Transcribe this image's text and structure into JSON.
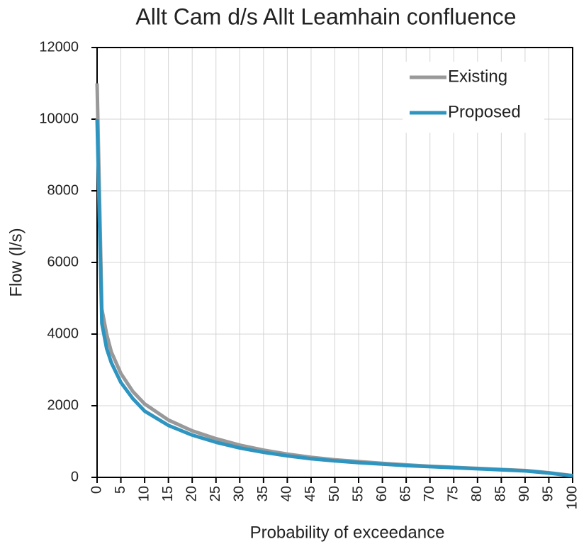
{
  "chart_data": {
    "type": "line",
    "title": "Allt Cam d/s Allt Leamhain confluence",
    "x_label": "Probability of exceedance",
    "y_label": "Flow (l/s)",
    "x": [
      0,
      1,
      2,
      3,
      5,
      7.5,
      10,
      15,
      20,
      25,
      30,
      35,
      40,
      45,
      50,
      55,
      60,
      65,
      70,
      75,
      80,
      85,
      90,
      95,
      100
    ],
    "series": [
      {
        "name": "Existing",
        "color": "#999999",
        "values": [
          11000,
          4700,
          4000,
          3500,
          2900,
          2400,
          2050,
          1600,
          1300,
          1080,
          900,
          760,
          650,
          560,
          490,
          440,
          390,
          350,
          310,
          280,
          250,
          220,
          190,
          130,
          50
        ]
      },
      {
        "name": "Proposed",
        "color": "#2e95c0",
        "values": [
          10000,
          4300,
          3600,
          3200,
          2650,
          2200,
          1850,
          1450,
          1180,
          980,
          820,
          700,
          600,
          520,
          460,
          410,
          370,
          330,
          300,
          270,
          240,
          210,
          180,
          120,
          40
        ]
      }
    ],
    "xlim": [
      0,
      100
    ],
    "xticks": [
      0,
      5,
      10,
      15,
      20,
      25,
      30,
      35,
      40,
      45,
      50,
      55,
      60,
      65,
      70,
      75,
      80,
      85,
      90,
      95,
      100
    ],
    "ylim": [
      0,
      12000
    ],
    "yticks": [
      0,
      2000,
      4000,
      6000,
      8000,
      10000,
      12000
    ],
    "grid": true,
    "legend": "upper right"
  }
}
